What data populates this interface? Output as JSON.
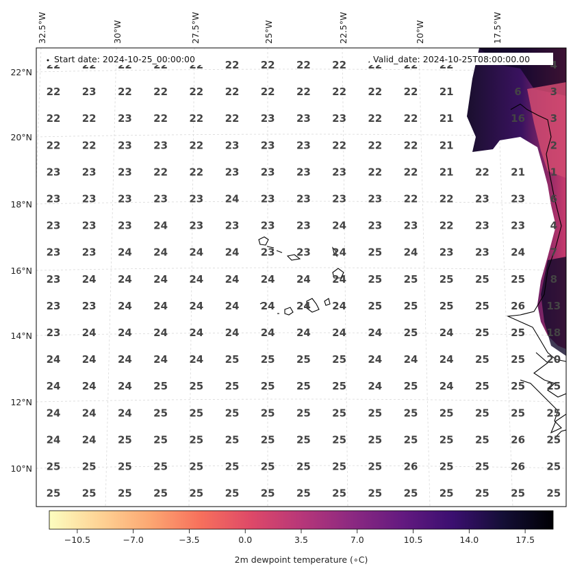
{
  "header": {
    "start_date": "Start date: 2024-10-25_00:00:00",
    "valid_date": "Valid_date: 2024-10-25T08:00:00.00"
  },
  "axes": {
    "lon_labels": [
      "32.5°W",
      "30°W",
      "27.5°W",
      "25°W",
      "22.5°W",
      "20°W",
      "17.5°W"
    ],
    "lat_labels": [
      "22°N",
      "20°N",
      "18°N",
      "16°N",
      "14°N",
      "12°N",
      "10°N"
    ]
  },
  "grid_values": [
    [
      "22",
      "22",
      "22",
      "22",
      "22",
      "22",
      "22",
      "22",
      "22",
      "22",
      "22",
      "22",
      "",
      "",
      "4"
    ],
    [
      "22",
      "23",
      "22",
      "22",
      "22",
      "22",
      "22",
      "22",
      "22",
      "22",
      "22",
      "21",
      "",
      "6",
      "3"
    ],
    [
      "22",
      "22",
      "23",
      "22",
      "22",
      "22",
      "23",
      "23",
      "23",
      "22",
      "22",
      "21",
      "",
      "16",
      "3"
    ],
    [
      "22",
      "22",
      "23",
      "23",
      "22",
      "23",
      "23",
      "23",
      "22",
      "22",
      "22",
      "21",
      "",
      "",
      "2"
    ],
    [
      "23",
      "23",
      "23",
      "22",
      "22",
      "23",
      "23",
      "23",
      "23",
      "22",
      "22",
      "21",
      "22",
      "21",
      "1"
    ],
    [
      "23",
      "23",
      "23",
      "23",
      "23",
      "24",
      "23",
      "23",
      "23",
      "23",
      "22",
      "22",
      "23",
      "23",
      "6"
    ],
    [
      "23",
      "23",
      "23",
      "24",
      "23",
      "23",
      "23",
      "23",
      "24",
      "23",
      "23",
      "22",
      "23",
      "23",
      "4"
    ],
    [
      "23",
      "23",
      "24",
      "24",
      "24",
      "24",
      "23",
      "23",
      "24",
      "25",
      "24",
      "23",
      "23",
      "24",
      "7"
    ],
    [
      "23",
      "24",
      "24",
      "24",
      "24",
      "24",
      "24",
      "24",
      "24",
      "25",
      "25",
      "25",
      "25",
      "25",
      "8"
    ],
    [
      "23",
      "23",
      "24",
      "24",
      "24",
      "24",
      "24",
      "24",
      "24",
      "25",
      "25",
      "25",
      "25",
      "26",
      "13"
    ],
    [
      "23",
      "24",
      "24",
      "24",
      "24",
      "24",
      "24",
      "24",
      "24",
      "24",
      "25",
      "24",
      "25",
      "25",
      "18"
    ],
    [
      "24",
      "24",
      "24",
      "24",
      "24",
      "25",
      "25",
      "25",
      "25",
      "24",
      "24",
      "24",
      "25",
      "25",
      "20"
    ],
    [
      "24",
      "24",
      "24",
      "25",
      "25",
      "25",
      "25",
      "25",
      "25",
      "24",
      "25",
      "24",
      "25",
      "25",
      "25"
    ],
    [
      "24",
      "24",
      "24",
      "25",
      "25",
      "25",
      "25",
      "25",
      "25",
      "25",
      "25",
      "25",
      "25",
      "25",
      "25"
    ],
    [
      "24",
      "24",
      "25",
      "25",
      "25",
      "25",
      "25",
      "25",
      "25",
      "25",
      "25",
      "25",
      "25",
      "26",
      "25"
    ],
    [
      "25",
      "25",
      "25",
      "25",
      "25",
      "25",
      "25",
      "25",
      "25",
      "25",
      "26",
      "25",
      "25",
      "26",
      "25"
    ],
    [
      "25",
      "25",
      "25",
      "25",
      "25",
      "25",
      "25",
      "25",
      "25",
      "25",
      "25",
      "25",
      "25",
      "25",
      "25"
    ]
  ],
  "colorbar": {
    "title": "2m dewpoint temperature ($^\\circ$C)",
    "display_title": "2m dewpoint temperature (∘C)",
    "ticks": [
      "−10.5",
      "−7.0",
      "−3.5",
      "0.0",
      "3.5",
      "7.0",
      "10.5",
      "14.0",
      "17.5"
    ],
    "min": -12.25,
    "max": 19.25,
    "colormap": "magma_r",
    "colors": [
      "#fcfdbf",
      "#fed395",
      "#fca772",
      "#f7705c",
      "#de4968",
      "#b73779",
      "#8c2981",
      "#641a80",
      "#3b0f70",
      "#140e36",
      "#000004"
    ]
  }
}
